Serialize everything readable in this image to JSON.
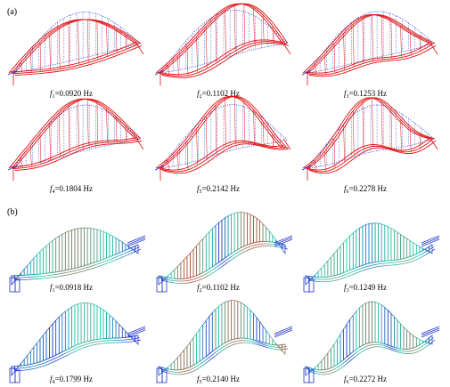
{
  "figure": {
    "panel_a_label": "(a)",
    "panel_b_label": "(b)",
    "panel_a": [
      {
        "symbol": "f",
        "sub": "1",
        "value": "=0.0920 Hz"
      },
      {
        "symbol": "f",
        "sub": "2",
        "value": "=0.1102 Hz"
      },
      {
        "symbol": "f",
        "sub": "3",
        "value": "=0.1253 Hz"
      },
      {
        "symbol": "f",
        "sub": "4",
        "value": "=0.1804 Hz"
      },
      {
        "symbol": "f",
        "sub": "5",
        "value": "=0.2142 Hz"
      },
      {
        "symbol": "f",
        "sub": "6",
        "value": "=0.2278 Hz"
      }
    ],
    "panel_b": [
      {
        "symbol": "f",
        "sub": "1",
        "value": "=0.0918 Hz"
      },
      {
        "symbol": "f",
        "sub": "2",
        "value": "=0.1102 Hz"
      },
      {
        "symbol": "f",
        "sub": "3",
        "value": "=0.1249 Hz"
      },
      {
        "symbol": "f",
        "sub": "4",
        "value": "=0.1799 Hz"
      },
      {
        "symbol": "f",
        "sub": "5",
        "value": "=0.2140 Hz"
      },
      {
        "symbol": "f",
        "sub": "6",
        "value": "=0.2272 Hz"
      }
    ]
  },
  "colors": {
    "mode_shape": "#e01010",
    "undeformed": "#2233dd",
    "fe_low": "#2233cc",
    "fe_mid": "#22ccaa",
    "fe_high": "#ee2211"
  }
}
